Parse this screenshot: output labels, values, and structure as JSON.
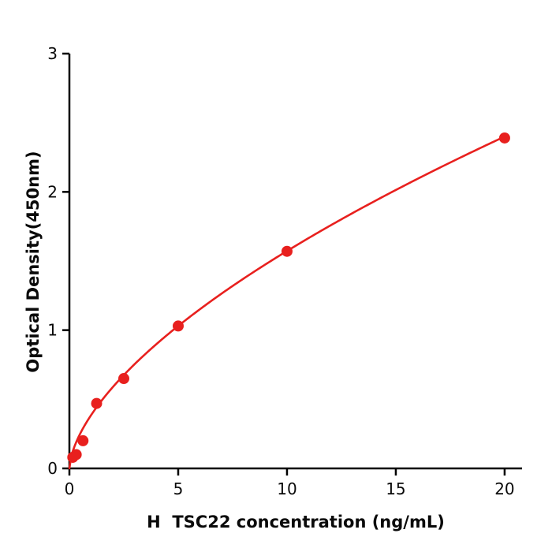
{
  "chart_data": {
    "type": "scatter",
    "title": "",
    "xlabel": "H  TSC22 concentration (ng/mL)",
    "ylabel": "Optical Density(450nm)",
    "x": [
      0.156,
      0.313,
      0.625,
      1.25,
      2.5,
      5,
      10,
      20
    ],
    "y": [
      0.08,
      0.1,
      0.2,
      0.47,
      0.65,
      1.03,
      1.57,
      2.39
    ],
    "xticks": [
      0,
      5,
      10,
      15,
      20
    ],
    "yticks": [
      0,
      1,
      2,
      3
    ],
    "xlim": [
      0,
      20.8
    ],
    "ylim": [
      0,
      3
    ],
    "grid": false,
    "legend": "none",
    "point_color": "#e8201e",
    "curve_color": "#e8201e",
    "axis_color": "#000000",
    "curve_fit": {
      "type": "power",
      "k": 0.386,
      "p": 0.61
    }
  }
}
